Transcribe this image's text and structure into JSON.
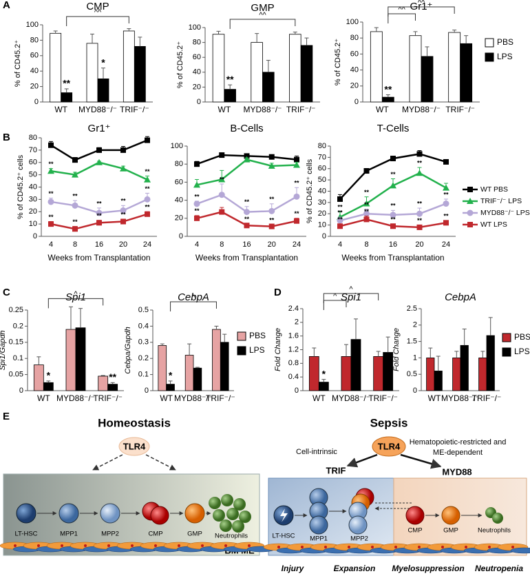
{
  "panel_labels": [
    "A",
    "B",
    "C",
    "D",
    "E"
  ],
  "chart_data": [
    {
      "type": "bar",
      "title": "CMP",
      "ylabel": "% of CD45.2⁺",
      "categories": [
        "WT",
        "MYD88⁻/⁻",
        "TRIF⁻/⁻"
      ],
      "series": [
        {
          "color": "#ffffff",
          "values": [
            89,
            76,
            92
          ],
          "errors": [
            3,
            12,
            3
          ],
          "significance": [
            null,
            null,
            null
          ]
        },
        {
          "color": "#000000",
          "values": [
            12,
            30,
            72
          ],
          "errors": [
            5,
            14,
            12
          ],
          "significance": [
            "**",
            "*",
            null
          ]
        }
      ],
      "ylim": [
        0,
        100
      ],
      "yticks": [
        0,
        20,
        40,
        60,
        80,
        100
      ],
      "brackets": [
        {
          "label": "^^",
          "between": [
            0,
            2
          ]
        }
      ]
    },
    {
      "type": "bar",
      "title": "GMP",
      "ylabel": "% of CD45.2⁺",
      "categories": [
        "WT",
        "MYD88⁻/⁻",
        "TRIF⁻/⁻"
      ],
      "series": [
        {
          "color": "#ffffff",
          "values": [
            91,
            80,
            91
          ],
          "errors": [
            4,
            12,
            3
          ],
          "significance": [
            null,
            null,
            null
          ]
        },
        {
          "color": "#000000",
          "values": [
            17,
            40,
            76
          ],
          "errors": [
            6,
            16,
            10
          ],
          "significance": [
            "**",
            null,
            null
          ]
        }
      ],
      "ylim": [
        0,
        100
      ],
      "yticks": [
        0,
        20,
        40,
        60,
        80,
        100
      ],
      "brackets": [
        {
          "label": "^^",
          "between": [
            0,
            2
          ]
        }
      ]
    },
    {
      "type": "bar",
      "title": "Gr1⁺",
      "ylabel": "% of CD45.2⁺",
      "categories": [
        "WT",
        "MYD88⁻/⁻",
        "TRIF⁻/⁻"
      ],
      "series": [
        {
          "name": "PBS",
          "color": "#ffffff",
          "values": [
            88,
            83,
            87
          ],
          "errors": [
            5,
            5,
            3
          ],
          "significance": [
            null,
            null,
            null
          ]
        },
        {
          "name": "LPS",
          "color": "#000000",
          "values": [
            6,
            57,
            73
          ],
          "errors": [
            3,
            12,
            10
          ],
          "significance": [
            "**",
            null,
            null
          ]
        }
      ],
      "ylim": [
        0,
        100
      ],
      "yticks": [
        0,
        20,
        40,
        60,
        80,
        100
      ],
      "legend": "right",
      "brackets": [
        {
          "label": "^^",
          "between": [
            0,
            1
          ]
        },
        {
          "label": "^^",
          "between": [
            0,
            2
          ]
        }
      ]
    },
    {
      "type": "line",
      "title": "Gr1⁺",
      "ylabel": "% of CD45.2⁺ cells",
      "xlabel": "Weeks from Transplantation",
      "categories": [
        4,
        8,
        16,
        20,
        24
      ],
      "series": [
        {
          "color": "#000000",
          "marker": "square",
          "values": [
            74,
            62,
            70,
            70,
            78
          ],
          "errors": [
            3,
            2,
            2,
            3,
            3
          ],
          "significance": [
            null,
            null,
            null,
            null,
            null
          ]
        },
        {
          "color": "#22b14c",
          "marker": "triangle",
          "values": [
            53,
            50,
            60,
            55,
            46
          ],
          "errors": [
            2,
            2,
            1,
            2,
            3
          ],
          "significance": [
            "**",
            null,
            null,
            null,
            "**"
          ]
        },
        {
          "color": "#b4a7d6",
          "marker": "circle",
          "values": [
            28,
            25,
            19,
            21,
            30
          ],
          "errors": [
            3,
            4,
            4,
            4,
            5
          ],
          "significance": [
            "**",
            "**",
            "**",
            "**",
            "**"
          ]
        },
        {
          "color": "#c0282d",
          "marker": "square",
          "values": [
            10,
            6,
            11,
            12,
            18
          ],
          "errors": [
            2,
            2,
            2,
            2,
            2
          ],
          "significance": [
            "**",
            "**",
            "**",
            "**",
            "**"
          ]
        }
      ],
      "ylim": [
        0,
        80
      ],
      "yticks": [
        0,
        10,
        20,
        30,
        40,
        50,
        60,
        70,
        80
      ]
    },
    {
      "type": "line",
      "title": "B-Cells",
      "xlabel": "Weeks from Transplantation",
      "categories": [
        4,
        8,
        16,
        20,
        24
      ],
      "series": [
        {
          "color": "#000000",
          "marker": "square",
          "values": [
            80,
            90,
            89,
            88,
            85
          ],
          "errors": [
            3,
            2,
            2,
            2,
            4
          ],
          "significance": [
            null,
            null,
            null,
            null,
            null
          ]
        },
        {
          "color": "#22b14c",
          "marker": "triangle",
          "values": [
            57,
            63,
            85,
            78,
            79
          ],
          "errors": [
            6,
            10,
            2,
            3,
            3
          ],
          "significance": [
            null,
            null,
            null,
            null,
            null
          ]
        },
        {
          "color": "#b4a7d6",
          "marker": "circle",
          "values": [
            36,
            46,
            27,
            28,
            44
          ],
          "errors": [
            3,
            12,
            6,
            8,
            10
          ],
          "significance": [
            "**",
            "**",
            "**",
            "**",
            "**"
          ]
        },
        {
          "color": "#c0282d",
          "marker": "square",
          "values": [
            20,
            27,
            12,
            11,
            17
          ],
          "errors": [
            3,
            5,
            2,
            2,
            3
          ],
          "significance": [
            "**",
            null,
            "**",
            "**",
            "**"
          ]
        }
      ],
      "ylim": [
        0,
        100
      ],
      "yticks": [
        0,
        20,
        40,
        60,
        80,
        100
      ]
    },
    {
      "type": "line",
      "title": "T-Cells",
      "ylabel": "% of CD45.2⁺ cells",
      "xlabel": "Weeks from Transplantation",
      "categories": [
        4,
        8,
        16,
        20,
        24
      ],
      "series": [
        {
          "name": "WT PBS",
          "color": "#000000",
          "marker": "square",
          "values": [
            33,
            58,
            69,
            73,
            66
          ],
          "errors": [
            4,
            2,
            2,
            3,
            2
          ],
          "significance": [
            null,
            null,
            null,
            null,
            null
          ]
        },
        {
          "name": "TRIF⁻/⁻ LPS",
          "color": "#22b14c",
          "marker": "triangle",
          "values": [
            17,
            29,
            45,
            56,
            43
          ],
          "errors": [
            5,
            6,
            6,
            5,
            4
          ],
          "significance": [
            "**",
            "**",
            "**",
            "**",
            null
          ]
        },
        {
          "name": "MYD88⁻/⁻ LPS",
          "color": "#b4a7d6",
          "marker": "circle",
          "values": [
            14,
            20,
            19,
            20,
            29
          ],
          "errors": [
            3,
            4,
            4,
            5,
            4
          ],
          "significance": [
            "**",
            "**",
            "**",
            "**",
            "**"
          ]
        },
        {
          "name": "WT LPS",
          "color": "#c0282d",
          "marker": "square",
          "values": [
            9,
            15,
            9,
            8,
            12
          ],
          "errors": [
            2,
            3,
            2,
            2,
            2
          ],
          "significance": [
            "**",
            "**",
            "**",
            "**",
            "**"
          ]
        }
      ],
      "ylim": [
        0,
        80
      ],
      "yticks": [
        0,
        10,
        20,
        30,
        40,
        50,
        60,
        70,
        80
      ],
      "legend": "right"
    },
    {
      "type": "bar",
      "title": "Spi1",
      "ylabel": "Spi1/Gapdh",
      "categories": [
        "WT",
        "MYD88⁻/⁻",
        "TRIF⁻/⁻"
      ],
      "series": [
        {
          "color": "#e6a3a3",
          "values": [
            0.08,
            0.19,
            0.045
          ],
          "errors": [
            0.025,
            0.07,
            0.002
          ],
          "significance": [
            null,
            null,
            null
          ]
        },
        {
          "color": "#000000",
          "values": [
            0.025,
            0.195,
            0.02
          ],
          "errors": [
            0.005,
            0.06,
            0.005
          ],
          "significance": [
            "*",
            null,
            "**"
          ]
        }
      ],
      "ylim": [
        0,
        0.25
      ],
      "yticks": [
        0,
        0.05,
        0.1,
        0.15,
        0.2,
        0.25
      ],
      "brackets": [
        {
          "label": "^",
          "between": [
            0,
            2
          ]
        }
      ]
    },
    {
      "type": "bar",
      "title": "CebpA",
      "ylabel": "Cebpa/Gapdh",
      "categories": [
        "WT",
        "MYD88⁻/⁻",
        "TRIF⁻/⁻"
      ],
      "series": [
        {
          "name": "PBS",
          "color": "#e6a3a3",
          "values": [
            0.28,
            0.22,
            0.38
          ],
          "errors": [
            0.01,
            0.07,
            0.02
          ],
          "significance": [
            null,
            null,
            null
          ]
        },
        {
          "name": "LPS",
          "color": "#000000",
          "values": [
            0.04,
            0.14,
            0.3
          ],
          "errors": [
            0.02,
            0.005,
            0.05
          ],
          "significance": [
            "*",
            null,
            null
          ]
        }
      ],
      "ylim": [
        0,
        0.5
      ],
      "yticks": [
        0,
        0.1,
        0.2,
        0.3,
        0.4,
        0.5
      ],
      "legend": "right",
      "brackets": [
        {
          "label": "^",
          "between": [
            0,
            2
          ]
        }
      ]
    },
    {
      "type": "bar",
      "title": "Spi1",
      "ylabel": "Fold Change",
      "categories": [
        "WT",
        "MYD88⁻/⁻",
        "TRIF⁻/⁻"
      ],
      "series": [
        {
          "color": "#c0282d",
          "values": [
            1,
            1,
            1
          ],
          "errors": [
            0.25,
            0.35,
            0.15
          ],
          "significance": [
            null,
            null,
            null
          ]
        },
        {
          "color": "#000000",
          "values": [
            0.25,
            1.5,
            1.12
          ],
          "errors": [
            0.08,
            0.6,
            0.45
          ],
          "significance": [
            "*",
            null,
            null
          ]
        }
      ],
      "ylim": [
        0,
        2.4
      ],
      "yticks": [
        0,
        0.4,
        0.8,
        1.2,
        1.6,
        2,
        2.4
      ],
      "brackets": [
        {
          "label": "^",
          "between": [
            0,
            1
          ]
        },
        {
          "label": "^",
          "between": [
            0,
            2
          ]
        }
      ]
    },
    {
      "type": "bar",
      "title": "CebpA",
      "ylabel": "Fold Change",
      "categories": [
        "WT",
        "MYD88⁻/⁻",
        "TRIF⁻/⁻"
      ],
      "series": [
        {
          "name": "PBS",
          "color": "#c0282d",
          "values": [
            1,
            1,
            1
          ],
          "errors": [
            0.3,
            0.2,
            0.2
          ],
          "significance": [
            null,
            null,
            null
          ]
        },
        {
          "name": "LPS",
          "color": "#000000",
          "values": [
            0.6,
            1.38,
            1.68
          ],
          "errors": [
            0.45,
            0.5,
            0.55
          ],
          "significance": [
            null,
            null,
            null
          ]
        }
      ],
      "ylim": [
        0,
        2.5
      ],
      "yticks": [
        0,
        0.5,
        1,
        1.5,
        2,
        2.5
      ],
      "legend": "right"
    }
  ],
  "diagram": {
    "homeostasis": {
      "title": "Homeostasis",
      "receptor": "TLR4",
      "cells": [
        "LT-HSC",
        "MPP1",
        "MPP2",
        "CMP",
        "GMP",
        "Neutrophils"
      ],
      "niche": "BM ME"
    },
    "sepsis": {
      "title": "Sepsis",
      "receptor": "TLR4",
      "left_note": "Cell-intrinsic",
      "right_note": [
        "Hematopoietic-restricted and",
        "ME-dependent"
      ],
      "pathways": [
        "TRIF",
        "MYD88"
      ],
      "cells": [
        "LT-HSC",
        "MPP1",
        "MPP2",
        "CMP",
        "GMP",
        "Neutrophils"
      ],
      "stages": [
        "Injury",
        "Expansion",
        "Myelosuppression",
        "Neutropenia"
      ]
    }
  }
}
